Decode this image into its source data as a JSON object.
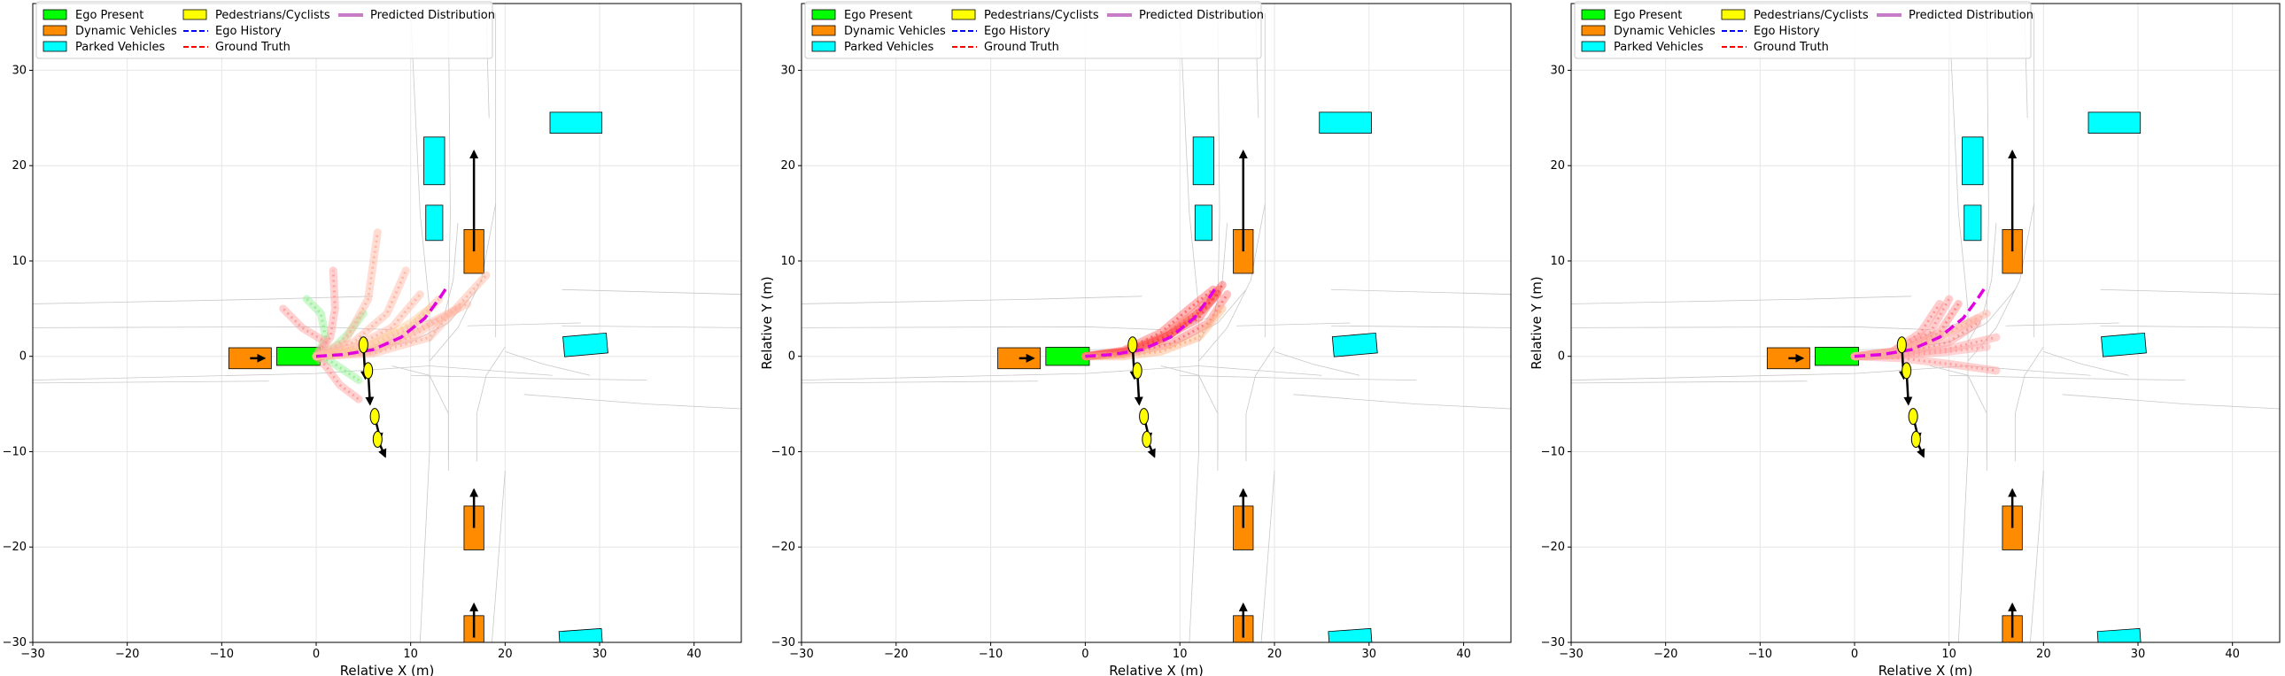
{
  "chart_data": {
    "type": "trajectory-plot",
    "xlim": [
      -30,
      45
    ],
    "ylim": [
      -30,
      37
    ],
    "xticks": [
      -30,
      -20,
      -10,
      0,
      10,
      20,
      30,
      40
    ],
    "yticks": [
      -30,
      -20,
      -10,
      0,
      10,
      20,
      30
    ],
    "xlabel": "Relative X (m)",
    "ylabel": "Relative Y (m)",
    "grid": true,
    "legend": {
      "placement": "top-left",
      "entries": [
        {
          "label": "Ego Present",
          "kind": "patch",
          "color": "#00ff00"
        },
        {
          "label": "Dynamic Vehicles",
          "kind": "patch",
          "color": "#ff8c00"
        },
        {
          "label": "Parked Vehicles",
          "kind": "patch",
          "color": "#00ffff"
        },
        {
          "label": "Pedestrians/Cyclists",
          "kind": "patch",
          "color": "#ffff00"
        },
        {
          "label": "Ego History",
          "kind": "line",
          "color": "#0000ff",
          "dash": true
        },
        {
          "label": "Ground Truth",
          "kind": "line",
          "color": "#ff0000",
          "dash": true
        },
        {
          "label": "Predicted Distribution",
          "kind": "line",
          "color": "#c77cc7",
          "dash": false
        }
      ]
    },
    "scene": {
      "ego": {
        "x": 0,
        "y": 0,
        "len": 4.6,
        "wid": 1.9
      },
      "parked": [
        {
          "x": 12.5,
          "y": 20.5,
          "w": 2.2,
          "h": 5
        },
        {
          "x": 12.5,
          "y": 14,
          "w": 1.8,
          "h": 3.7
        },
        {
          "x": 27.5,
          "y": 24.5,
          "w": 5.5,
          "h": 2.2
        },
        {
          "x": 28.5,
          "y": 1.2,
          "w": 4.6,
          "h": 2.1,
          "rot": -5
        },
        {
          "x": 28,
          "y": -29.5,
          "w": 4.5,
          "h": 1.6,
          "rot": -4
        }
      ],
      "dynamic": [
        {
          "x": -7,
          "y": -0.2,
          "w": 4.5,
          "h": 2.2,
          "arrow": [
            1.5,
            0
          ]
        },
        {
          "x": 16.7,
          "y": 11,
          "w": 2.1,
          "h": 4.6,
          "arrow": [
            0,
            10.5
          ]
        },
        {
          "x": 16.7,
          "y": -18,
          "w": 2.1,
          "h": 4.6,
          "arrow": [
            0,
            4
          ]
        },
        {
          "x": 16.7,
          "y": -29.5,
          "w": 2.1,
          "h": 4.6,
          "arrow": [
            0,
            3.5
          ]
        }
      ],
      "pedestrians": [
        {
          "x": 5,
          "y": 1.2,
          "arrow": [
            0.2,
            -3.5
          ]
        },
        {
          "x": 5.5,
          "y": -1.5,
          "arrow": [
            0.2,
            -3.5
          ]
        },
        {
          "x": 6.2,
          "y": -6.3,
          "arrow": [
            0.6,
            -2.5
          ]
        },
        {
          "x": 6.5,
          "y": -8.7,
          "arrow": [
            0.8,
            -1.8
          ]
        }
      ],
      "ground_truth": [
        [
          0,
          0
        ],
        [
          3,
          0.2
        ],
        [
          6,
          0.7
        ],
        [
          9,
          2
        ],
        [
          11.5,
          4
        ],
        [
          13,
          6
        ],
        [
          14,
          7.5
        ]
      ]
    },
    "panels": [
      {
        "ylabel_visible": false,
        "predictions": [
          {
            "color": "#90ee90",
            "pts": [
              [
                0,
                0
              ],
              [
                1,
                2
              ],
              [
                0.5,
                4.5
              ],
              [
                -1,
                6
              ]
            ]
          },
          {
            "color": "#90ee90",
            "pts": [
              [
                0,
                0
              ],
              [
                2,
                1
              ],
              [
                3.5,
                2.5
              ],
              [
                5,
                4.5
              ]
            ]
          },
          {
            "color": "#90ee90",
            "pts": [
              [
                0,
                0
              ],
              [
                1.5,
                -0.5
              ],
              [
                3,
                -1.5
              ],
              [
                4.5,
                -2.5
              ]
            ]
          },
          {
            "color": "#ff9999",
            "pts": [
              [
                0,
                0
              ],
              [
                1.5,
                2
              ],
              [
                2,
                5
              ],
              [
                1.8,
                9
              ]
            ]
          },
          {
            "color": "#ff9999",
            "pts": [
              [
                0,
                0
              ],
              [
                1,
                1.5
              ],
              [
                -1.5,
                3
              ],
              [
                -3.5,
                5
              ]
            ]
          },
          {
            "color": "#ffb3a0",
            "pts": [
              [
                0,
                0
              ],
              [
                3,
                1.5
              ],
              [
                5.5,
                6
              ],
              [
                6.5,
                13
              ]
            ]
          },
          {
            "color": "#ffb3a0",
            "pts": [
              [
                0,
                0
              ],
              [
                4,
                1.5
              ],
              [
                7.5,
                4.5
              ],
              [
                9.5,
                9
              ]
            ]
          },
          {
            "color": "#ffb3a0",
            "pts": [
              [
                0,
                0
              ],
              [
                4,
                1
              ],
              [
                8,
                3
              ],
              [
                11,
                6.5
              ]
            ]
          },
          {
            "color": "#ffb3a0",
            "pts": [
              [
                0,
                0
              ],
              [
                5,
                0.8
              ],
              [
                10,
                3
              ],
              [
                13,
                6
              ]
            ]
          },
          {
            "color": "#ffb3a0",
            "pts": [
              [
                0,
                0
              ],
              [
                5,
                0.5
              ],
              [
                10,
                2
              ],
              [
                15,
                5
              ]
            ]
          },
          {
            "color": "#ffb3a0",
            "pts": [
              [
                0,
                0
              ],
              [
                6,
                0.5
              ],
              [
                11,
                3
              ],
              [
                16,
                5.5
              ]
            ]
          },
          {
            "color": "#ffb3a0",
            "pts": [
              [
                0,
                0
              ],
              [
                6,
                0.3
              ],
              [
                12,
                2
              ],
              [
                18,
                8.5
              ]
            ]
          },
          {
            "color": "#ff9999",
            "pts": [
              [
                0,
                0
              ],
              [
                1,
                -1
              ],
              [
                2.5,
                -3
              ],
              [
                4.5,
                -4.5
              ]
            ]
          },
          {
            "color": "#ffcc99",
            "pts": [
              [
                0,
                0
              ],
              [
                5,
                0.8
              ],
              [
                10,
                3.5
              ],
              [
                12,
                5
              ]
            ]
          }
        ]
      },
      {
        "ylabel_visible": true,
        "predictions": [
          {
            "color": "#ffd8a0",
            "pts": [
              [
                0,
                0
              ],
              [
                4,
                0.3
              ],
              [
                8,
                1.5
              ],
              [
                11,
                4
              ]
            ]
          },
          {
            "color": "#ff7f7f",
            "pts": [
              [
                0,
                0
              ],
              [
                4,
                0.5
              ],
              [
                8,
                2
              ],
              [
                11.5,
                4.5
              ],
              [
                14,
                7
              ]
            ]
          },
          {
            "color": "#ff5050",
            "pts": [
              [
                0,
                0
              ],
              [
                4,
                0.4
              ],
              [
                8,
                1.8
              ],
              [
                12,
                4
              ],
              [
                14.5,
                7.5
              ]
            ]
          },
          {
            "color": "#ff6060",
            "pts": [
              [
                0,
                0
              ],
              [
                4,
                0.6
              ],
              [
                8,
                2.5
              ],
              [
                11,
                5
              ],
              [
                13.5,
                7
              ]
            ]
          },
          {
            "color": "#ff4040",
            "pts": [
              [
                0,
                0
              ],
              [
                5,
                0.6
              ],
              [
                9,
                2.3
              ],
              [
                12.5,
                5
              ],
              [
                14,
                6.5
              ]
            ]
          },
          {
            "color": "#ff7070",
            "pts": [
              [
                0,
                0
              ],
              [
                4,
                0.2
              ],
              [
                9,
                1.3
              ],
              [
                13,
                3.5
              ],
              [
                15,
                6.5
              ]
            ]
          },
          {
            "color": "#ffb080",
            "pts": [
              [
                0,
                0
              ],
              [
                4,
                0
              ],
              [
                8,
                0.5
              ],
              [
                12,
                2
              ],
              [
                14.5,
                5
              ]
            ]
          }
        ]
      },
      {
        "ylabel_visible": true,
        "predictions": [
          {
            "color": "#ff9090",
            "pts": [
              [
                0,
                0
              ],
              [
                4,
                0.5
              ],
              [
                7,
                2.5
              ],
              [
                9,
                5.5
              ]
            ]
          },
          {
            "color": "#ff9090",
            "pts": [
              [
                0,
                0
              ],
              [
                4,
                0.5
              ],
              [
                8,
                2.5
              ],
              [
                10,
                6
              ]
            ]
          },
          {
            "color": "#ff8080",
            "pts": [
              [
                0,
                0
              ],
              [
                5,
                0.5
              ],
              [
                9,
                2.5
              ],
              [
                11,
                5.5
              ]
            ]
          },
          {
            "color": "#ff9090",
            "pts": [
              [
                0,
                0
              ],
              [
                5,
                0.3
              ],
              [
                10,
                1.5
              ],
              [
                13,
                3.5
              ]
            ]
          },
          {
            "color": "#ff9999",
            "pts": [
              [
                0,
                0
              ],
              [
                5,
                0.2
              ],
              [
                10,
                0.8
              ],
              [
                15,
                2
              ]
            ]
          },
          {
            "color": "#ff9999",
            "pts": [
              [
                0,
                0
              ],
              [
                5,
                -0.2
              ],
              [
                10,
                -0.8
              ],
              [
                15,
                -1.5
              ]
            ]
          },
          {
            "color": "#ffa0a0",
            "pts": [
              [
                0,
                0
              ],
              [
                5,
                0.1
              ],
              [
                10,
                0.5
              ],
              [
                14,
                1
              ]
            ]
          },
          {
            "color": "#ffb0a0",
            "pts": [
              [
                0,
                0
              ],
              [
                5,
                0.6
              ],
              [
                10,
                2.5
              ],
              [
                14,
                4.5
              ]
            ]
          },
          {
            "color": "#ffb0a0",
            "pts": [
              [
                0,
                0
              ],
              [
                4,
                0.3
              ],
              [
                8,
                1.5
              ],
              [
                11,
                3
              ],
              [
                13,
                4
              ]
            ]
          }
        ]
      }
    ]
  }
}
